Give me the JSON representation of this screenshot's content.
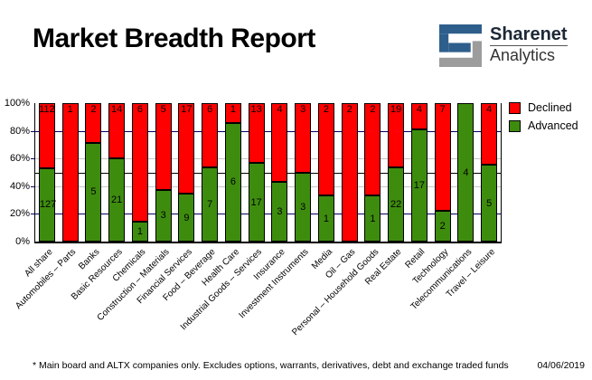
{
  "header": {
    "title": "Market Breadth Report",
    "logo": {
      "name": "Sharenet",
      "sub": "Analytics",
      "blue": "#2e5f8c",
      "gray": "#9c9c9c"
    }
  },
  "legend": {
    "items": [
      {
        "label": "Declined",
        "color": "#ff0000"
      },
      {
        "label": "Advanced",
        "color": "#3e8c0e"
      }
    ]
  },
  "chart_data": {
    "type": "bar",
    "stacked": true,
    "normalized": "percent",
    "title": "Market Breadth Report",
    "categories": [
      "All share",
      "Automobiles – Parts",
      "Banks",
      "Basic Resources",
      "Chemicals",
      "Construction – Materials",
      "Financial Services",
      "Food – Beverage",
      "Health Care",
      "Industrial Goods – Services",
      "Insurance",
      "Investment Instruments",
      "Media",
      "Oil – Gas",
      "Personal – Household Goods",
      "Real Estate",
      "Retail",
      "Technology",
      "Telecommunications",
      "Travel – Leisure"
    ],
    "series": [
      {
        "name": "Declined",
        "color": "#ff0000",
        "values": [
          112,
          1,
          2,
          14,
          6,
          5,
          17,
          6,
          1,
          13,
          4,
          3,
          2,
          2,
          2,
          19,
          4,
          7,
          0,
          4
        ]
      },
      {
        "name": "Advanced",
        "color": "#3e8c0e",
        "values": [
          127,
          0,
          5,
          21,
          1,
          3,
          9,
          7,
          6,
          17,
          3,
          3,
          1,
          0,
          1,
          22,
          17,
          2,
          4,
          5
        ]
      }
    ],
    "yticks": [
      "0%",
      "20%",
      "40%",
      "60%",
      "80%",
      "100%"
    ],
    "ylim": [
      0,
      100
    ],
    "gridlines": [
      {
        "pct": 20,
        "color": "#000066"
      },
      {
        "pct": 40,
        "color": "#c6c6c6"
      },
      {
        "pct": 50,
        "color": "#000000"
      },
      {
        "pct": 60,
        "color": "#c6c6c6"
      },
      {
        "pct": 80,
        "color": "#000066"
      }
    ],
    "legend_position": "top-right-outside",
    "bar_outline": "#000000"
  },
  "footer": {
    "note": "* Main board and ALTX companies only. Excludes options, warrants, derivatives, debt and exchange traded funds",
    "date": "04/06/2019"
  }
}
